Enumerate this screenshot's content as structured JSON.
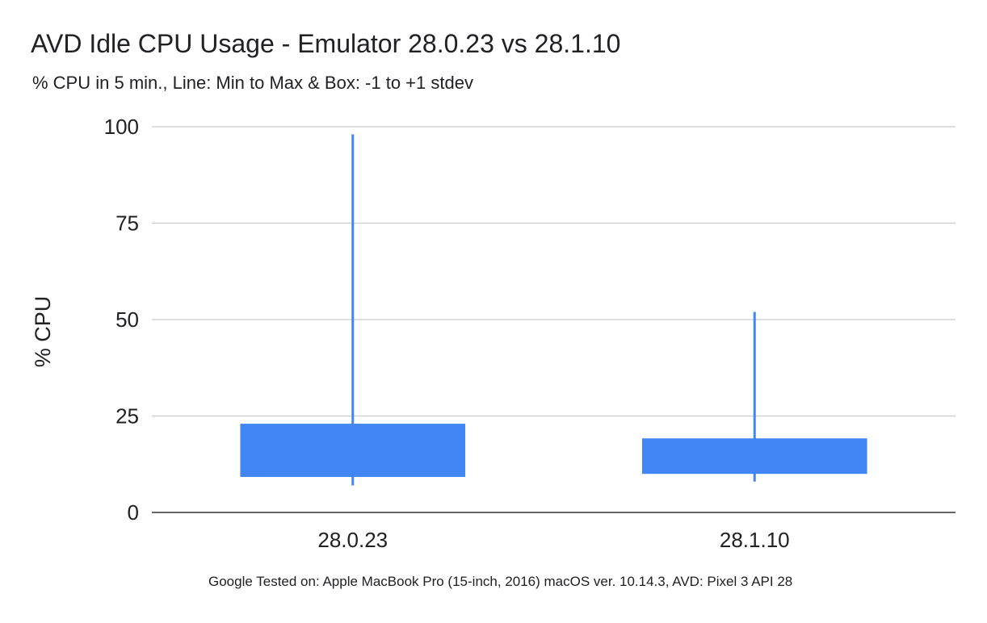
{
  "chart_data": {
    "type": "box",
    "title": "AVD Idle CPU Usage - Emulator 28.0.23 vs 28.1.10",
    "subtitle": "% CPU in 5 min., Line: Min to Max & Box: -1 to +1 stdev",
    "footnote": "Google Tested on: Apple MacBook Pro (15-inch, 2016) macOS ver. 10.14.3, AVD: Pixel 3 API 28",
    "xlabel": "",
    "ylabel": "% CPU",
    "ylim": [
      0,
      100
    ],
    "yticks": [
      0,
      25,
      50,
      75,
      100
    ],
    "categories": [
      "28.0.23",
      "28.1.10"
    ],
    "boxes": [
      {
        "category": "28.0.23",
        "min": 7,
        "box_low": 9.2,
        "box_high": 23,
        "max": 98
      },
      {
        "category": "28.1.10",
        "min": 8,
        "box_low": 10,
        "box_high": 19.2,
        "max": 52
      }
    ],
    "grid": true,
    "legend": "none",
    "colors": {
      "series": "#4285F4",
      "gridline": "#cccccc",
      "baseline": "#333333",
      "text": "#202124"
    }
  }
}
